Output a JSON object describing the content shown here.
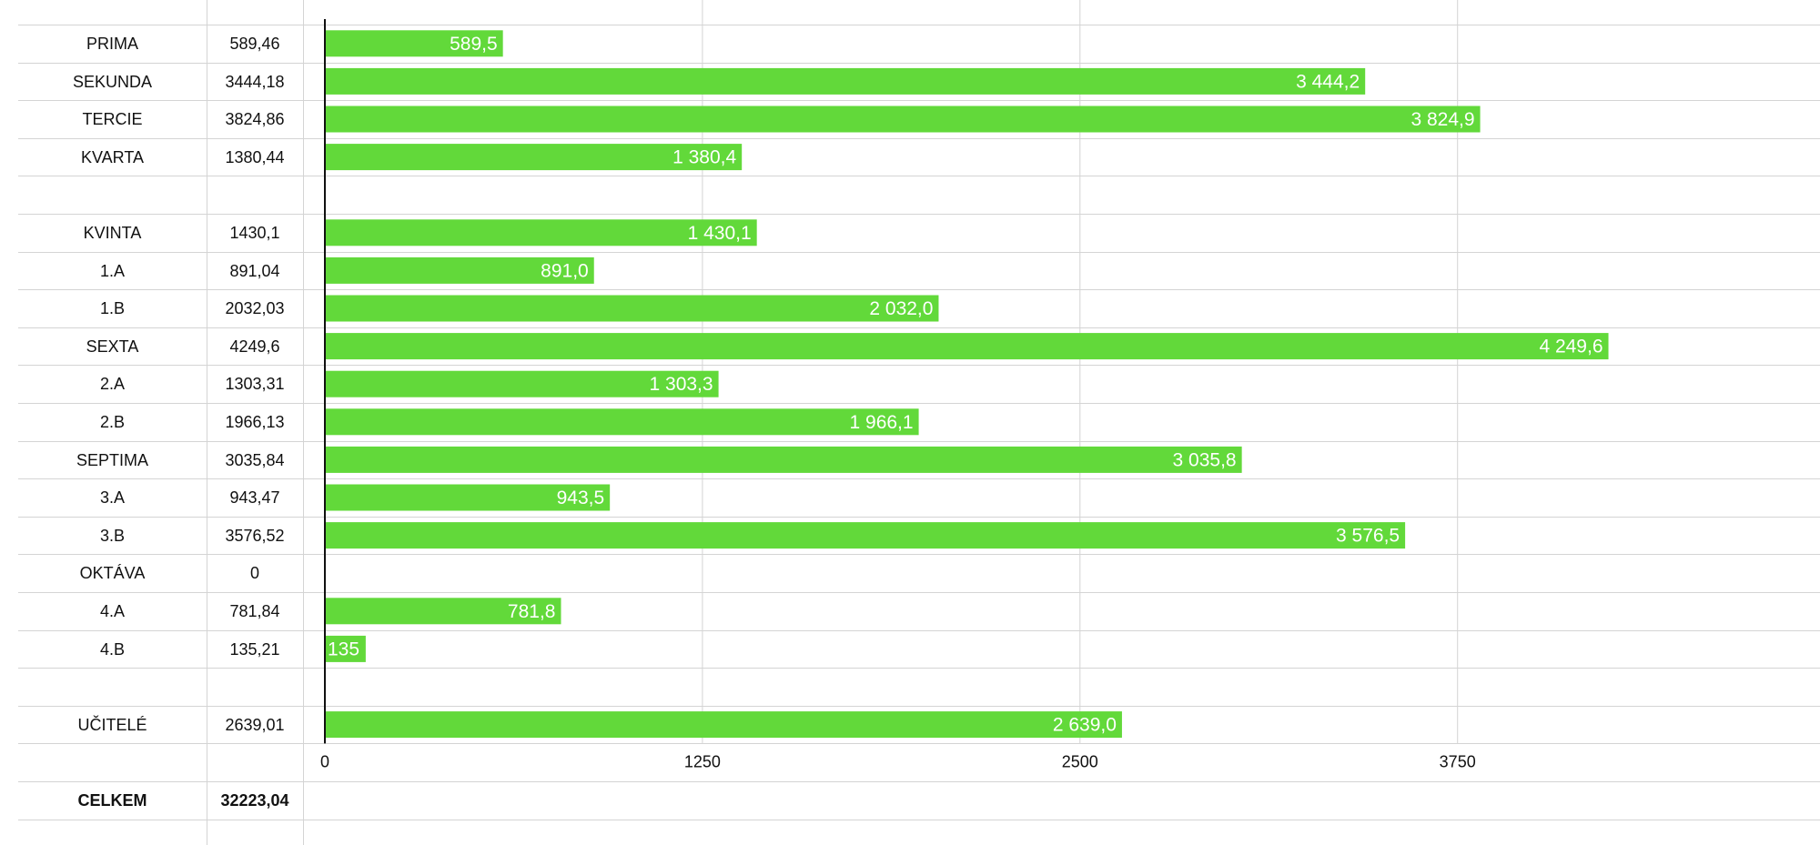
{
  "table": {
    "rows": [
      {
        "label": "PRIMA",
        "value": "589,46"
      },
      {
        "label": "SEKUNDA",
        "value": "3444,18"
      },
      {
        "label": "TERCIE",
        "value": "3824,86"
      },
      {
        "label": "KVARTA",
        "value": "1380,44"
      },
      {
        "label": "",
        "value": ""
      },
      {
        "label": "KVINTA",
        "value": "1430,1"
      },
      {
        "label": "1.A",
        "value": "891,04"
      },
      {
        "label": "1.B",
        "value": "2032,03"
      },
      {
        "label": "SEXTA",
        "value": "4249,6"
      },
      {
        "label": "2.A",
        "value": "1303,31"
      },
      {
        "label": "2.B",
        "value": "1966,13"
      },
      {
        "label": "SEPTIMA",
        "value": "3035,84"
      },
      {
        "label": "3.A",
        "value": "943,47"
      },
      {
        "label": "3.B",
        "value": "3576,52"
      },
      {
        "label": "OKTÁVA",
        "value": "0"
      },
      {
        "label": "4.A",
        "value": "781,84"
      },
      {
        "label": "4.B",
        "value": "135,21"
      },
      {
        "label": "",
        "value": ""
      },
      {
        "label": "UČITELÉ",
        "value": "2639,01"
      }
    ],
    "total_label": "CELKEM",
    "total_value": "32223,04"
  },
  "chart_data": {
    "type": "bar",
    "orientation": "horizontal",
    "categories": [
      "PRIMA",
      "SEKUNDA",
      "TERCIE",
      "KVARTA",
      "",
      "KVINTA",
      "1.A",
      "1.B",
      "SEXTA",
      "2.A",
      "2.B",
      "SEPTIMA",
      "3.A",
      "3.B",
      "OKTÁVA",
      "4.A",
      "4.B",
      "",
      "UČITELÉ"
    ],
    "values": [
      589.5,
      3444.2,
      3824.9,
      1380.4,
      null,
      1430.1,
      891.0,
      2032.0,
      4249.6,
      1303.3,
      1966.1,
      3035.8,
      943.5,
      3576.5,
      0,
      781.8,
      135.21,
      null,
      2639.0
    ],
    "data_labels": [
      "589,5",
      "3 444,2",
      "3 824,9",
      "1 380,4",
      "",
      "1 430,1",
      "891,0",
      "2 032,0",
      "4 249,6",
      "1 303,3",
      "1 966,1",
      "3 035,8",
      "943,5",
      "3 576,5",
      "",
      "781,8",
      "135",
      "",
      "2 639,0"
    ],
    "x_ticks": [
      0,
      1250,
      2500,
      3750
    ],
    "x_tick_labels": [
      "0",
      "1250",
      "2500",
      "3750"
    ],
    "xlim": [
      0,
      4950
    ],
    "grid": true,
    "title": "",
    "xlabel": "",
    "ylabel": "",
    "colors": {
      "bar": "#62d93a",
      "axis": "#111111",
      "grid": "#d4d4d4"
    }
  }
}
